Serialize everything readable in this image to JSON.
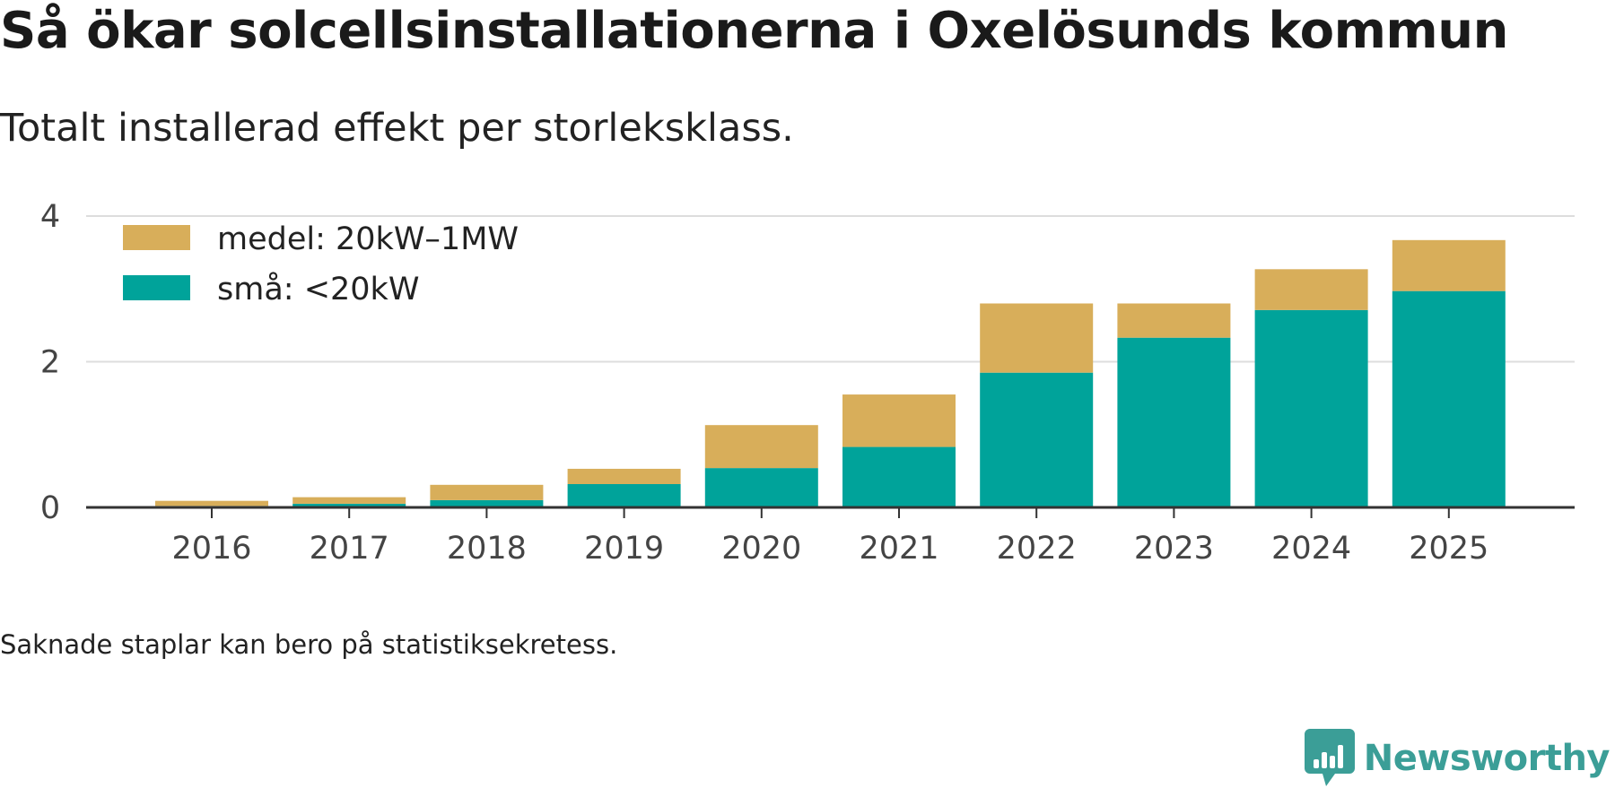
{
  "header": {
    "title": "Så ökar solcellsinstallationerna i Oxelösunds kommun",
    "subtitle": "Totalt installerad effekt per storleksklass."
  },
  "footer": {
    "note": "Saknade staplar kan bero på statistiksekretess.",
    "brand": "Newsworthy"
  },
  "colors": {
    "small": "#00a39a",
    "medium": "#d8ae5a",
    "grid": "#dddddd",
    "axis": "#333333",
    "brand": "#3b9e97"
  },
  "icons": {
    "brand": "newsworthy-logo-icon"
  },
  "chart_data": {
    "type": "bar",
    "stacked": true,
    "title": "Så ökar solcellsinstallationerna i Oxelösunds kommun",
    "subtitle": "Totalt installerad effekt per storleksklass.",
    "xlabel": "",
    "ylabel": "",
    "categories": [
      "2016",
      "2017",
      "2018",
      "2019",
      "2020",
      "2021",
      "2022",
      "2023",
      "2024",
      "2025"
    ],
    "series": [
      {
        "name": "små: <20kW",
        "values": [
          0.02,
          0.05,
          0.1,
          0.32,
          0.54,
          0.83,
          1.85,
          2.33,
          2.71,
          2.97
        ]
      },
      {
        "name": "medel: 20kW–1MW",
        "values": [
          0.07,
          0.09,
          0.21,
          0.21,
          0.59,
          0.72,
          0.95,
          0.47,
          0.56,
          0.7
        ]
      }
    ],
    "ylim": [
      0,
      4
    ],
    "yticks": [
      0,
      2,
      4
    ],
    "grid": true,
    "legend": "top-left"
  }
}
